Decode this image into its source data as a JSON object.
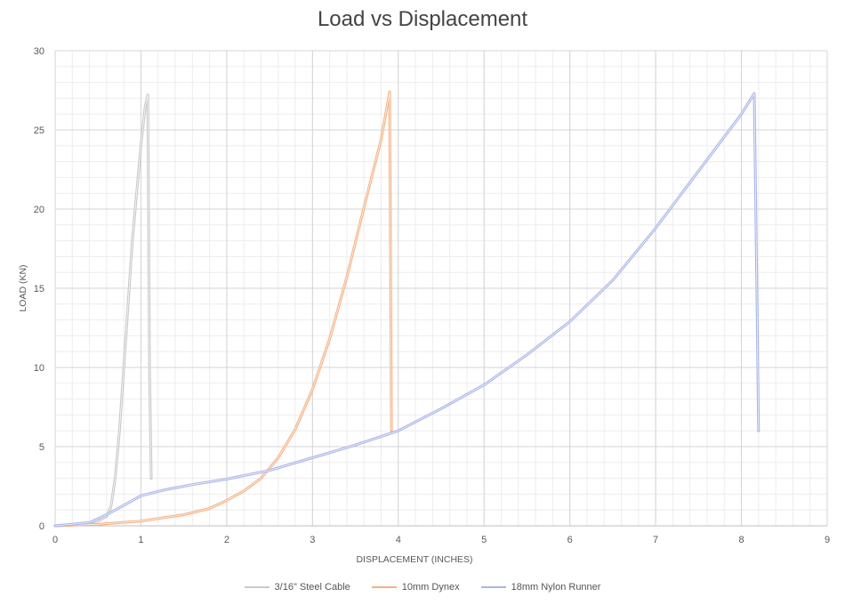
{
  "chart_data": {
    "type": "line",
    "title": "Load vs Displacement",
    "xlabel": "DISPLACEMENT (INCHES)",
    "ylabel": "LOAD (KN)",
    "xlim": [
      0,
      9
    ],
    "ylim": [
      0,
      30
    ],
    "xticks": [
      0,
      1,
      2,
      3,
      4,
      5,
      6,
      7,
      8,
      9
    ],
    "yticks": [
      0,
      5,
      10,
      15,
      20,
      25,
      30
    ],
    "grid": true,
    "legend_position": "bottom",
    "series": [
      {
        "name": "3/16\" Steel Cable",
        "color": "#c9c9c9",
        "x": [
          0,
          0.3,
          0.5,
          0.6,
          0.65,
          0.7,
          0.75,
          0.8,
          0.85,
          0.9,
          0.95,
          1.0,
          1.05,
          1.08,
          1.1,
          1.12
        ],
        "y": [
          0,
          0.1,
          0.3,
          0.6,
          1.2,
          3.0,
          6.0,
          10.0,
          14.0,
          18.0,
          21.0,
          24.0,
          26.5,
          27.2,
          10.0,
          3.0
        ]
      },
      {
        "name": "10mm Dynex",
        "color": "#f4b183",
        "x": [
          0,
          0.5,
          1.0,
          1.5,
          1.8,
          2.0,
          2.2,
          2.4,
          2.6,
          2.8,
          3.0,
          3.2,
          3.4,
          3.6,
          3.8,
          3.9,
          3.92
        ],
        "y": [
          0,
          0.1,
          0.3,
          0.7,
          1.1,
          1.6,
          2.2,
          3.0,
          4.3,
          6.1,
          8.6,
          11.8,
          15.7,
          20.1,
          24.4,
          27.4,
          6.0
        ]
      },
      {
        "name": "18mm Nylon Runner",
        "color": "#a9b4e8",
        "x": [
          0,
          0.4,
          0.6,
          0.8,
          1.0,
          1.3,
          1.6,
          2.0,
          2.5,
          3.0,
          3.5,
          4.0,
          4.5,
          5.0,
          5.5,
          6.0,
          6.5,
          7.0,
          7.5,
          8.0,
          8.15,
          8.18,
          8.2
        ],
        "y": [
          0,
          0.2,
          0.7,
          1.3,
          1.9,
          2.3,
          2.6,
          2.95,
          3.5,
          4.3,
          5.1,
          6.0,
          7.4,
          8.9,
          10.8,
          12.9,
          15.5,
          18.8,
          22.4,
          26.0,
          27.3,
          15.0,
          6.0
        ]
      }
    ]
  }
}
